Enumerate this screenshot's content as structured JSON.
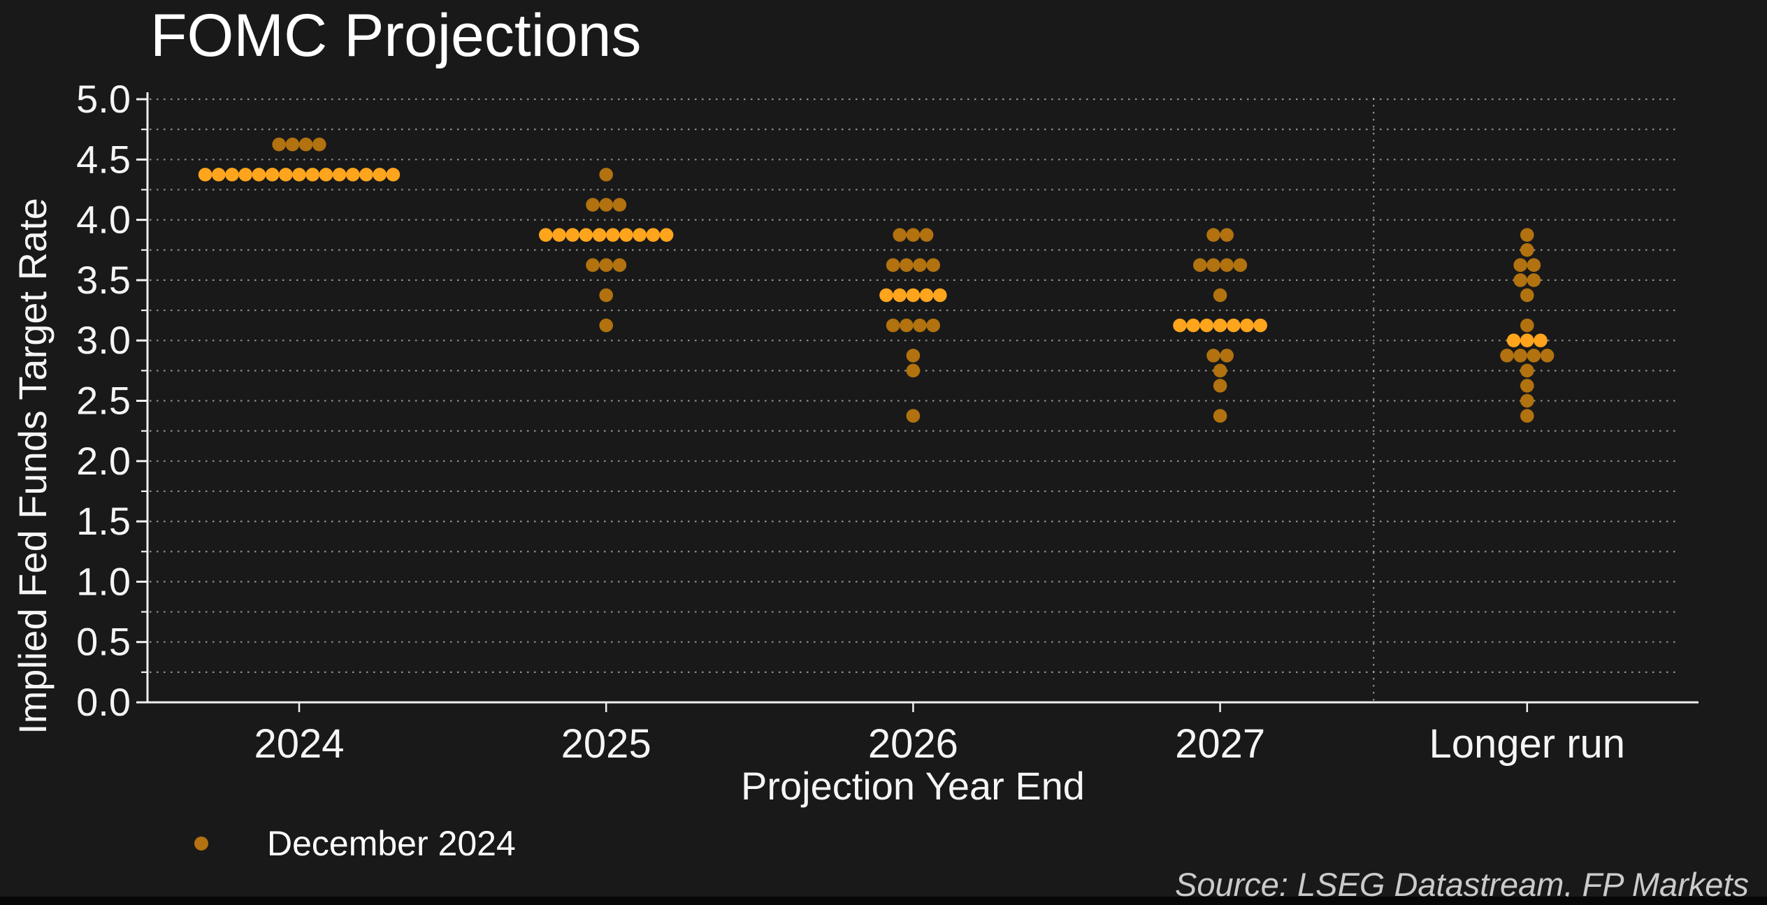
{
  "title": "FOMC Projections",
  "source_note": "Source: LSEG Datastream, FP Markets",
  "legend": {
    "series_label": "December 2024"
  },
  "colors": {
    "background": "#191919",
    "dot": "#b1720f",
    "dot_median": "#ffa51d",
    "legend_dot": "#b1720f",
    "grid": "#b0b0b0",
    "axis": "#f0f0f0",
    "text": "#f5f5f5",
    "source_text": "#cbcbcb"
  },
  "chart_data": {
    "type": "scatter",
    "subtype": "fomc-dot-plot",
    "title": "FOMC Projections",
    "xlabel": "Projection Year End",
    "ylabel": "Implied Fed Funds Target Rate",
    "categories": [
      "2024",
      "2025",
      "2026",
      "2027",
      "Longer run"
    ],
    "ylim": [
      0.0,
      5.0
    ],
    "ytick_step": 0.5,
    "ytick_labels": [
      "0.0",
      "0.5",
      "1.0",
      "1.5",
      "2.0",
      "2.5",
      "3.0",
      "3.5",
      "4.0",
      "4.5",
      "5.0"
    ],
    "grid": {
      "horizontal_step": 0.25,
      "style": "dotted",
      "vertical_separator_between": [
        "2027",
        "Longer run"
      ]
    },
    "legend_position": "bottom-left",
    "medians": {
      "2024": 4.375,
      "2025": 3.875,
      "2026": 3.375,
      "2027": 3.125,
      "Longer run": 3.0
    },
    "series": [
      {
        "name": "December 2024",
        "columns": [
          {
            "category": "2024",
            "dots": [
              {
                "rate": 4.625,
                "count": 4
              },
              {
                "rate": 4.375,
                "count": 15,
                "is_median": true
              }
            ]
          },
          {
            "category": "2025",
            "dots": [
              {
                "rate": 4.375,
                "count": 1
              },
              {
                "rate": 4.125,
                "count": 3
              },
              {
                "rate": 3.875,
                "count": 10,
                "is_median": true
              },
              {
                "rate": 3.625,
                "count": 3
              },
              {
                "rate": 3.375,
                "count": 1
              },
              {
                "rate": 3.125,
                "count": 1
              }
            ]
          },
          {
            "category": "2026",
            "dots": [
              {
                "rate": 3.875,
                "count": 3
              },
              {
                "rate": 3.625,
                "count": 4
              },
              {
                "rate": 3.375,
                "count": 5,
                "is_median": true
              },
              {
                "rate": 3.125,
                "count": 4
              },
              {
                "rate": 2.875,
                "count": 1
              },
              {
                "rate": 2.75,
                "count": 1
              },
              {
                "rate": 2.375,
                "count": 1
              }
            ]
          },
          {
            "category": "2027",
            "dots": [
              {
                "rate": 3.875,
                "count": 2
              },
              {
                "rate": 3.625,
                "count": 4
              },
              {
                "rate": 3.375,
                "count": 1
              },
              {
                "rate": 3.125,
                "count": 7,
                "is_median": true
              },
              {
                "rate": 2.875,
                "count": 2
              },
              {
                "rate": 2.75,
                "count": 1
              },
              {
                "rate": 2.625,
                "count": 1
              },
              {
                "rate": 2.375,
                "count": 1
              }
            ]
          },
          {
            "category": "Longer run",
            "dots": [
              {
                "rate": 3.875,
                "count": 1
              },
              {
                "rate": 3.75,
                "count": 1
              },
              {
                "rate": 3.625,
                "count": 2
              },
              {
                "rate": 3.5,
                "count": 2
              },
              {
                "rate": 3.375,
                "count": 1
              },
              {
                "rate": 3.125,
                "count": 1
              },
              {
                "rate": 3.0,
                "count": 3,
                "is_median": true
              },
              {
                "rate": 2.875,
                "count": 4
              },
              {
                "rate": 2.75,
                "count": 1
              },
              {
                "rate": 2.625,
                "count": 1
              },
              {
                "rate": 2.5,
                "count": 1
              },
              {
                "rate": 2.375,
                "count": 1
              }
            ]
          }
        ]
      }
    ]
  }
}
